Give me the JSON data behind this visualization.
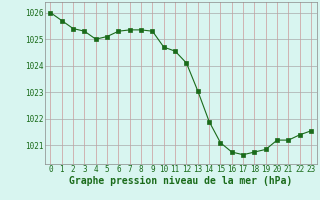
{
  "x": [
    0,
    1,
    2,
    3,
    4,
    5,
    6,
    7,
    8,
    9,
    10,
    11,
    12,
    13,
    14,
    15,
    16,
    17,
    18,
    19,
    20,
    21,
    22,
    23
  ],
  "y": [
    1026.0,
    1025.7,
    1025.4,
    1025.3,
    1025.0,
    1025.1,
    1025.3,
    1025.35,
    1025.35,
    1025.3,
    1024.7,
    1024.55,
    1024.1,
    1023.05,
    1021.9,
    1021.1,
    1020.75,
    1020.65,
    1020.75,
    1020.85,
    1021.2,
    1021.2,
    1021.4,
    1021.55
  ],
  "line_color": "#1a6b1a",
  "marker": "s",
  "marker_size": 2.2,
  "bg_color": "#d8f5f0",
  "grid_color_v": "#cc9999",
  "grid_color_h": "#aaaaaa",
  "xlabel": "Graphe pression niveau de la mer (hPa)",
  "xlabel_color": "#1a6b1a",
  "xlabel_fontsize": 7,
  "ylabel_ticks": [
    1021,
    1022,
    1023,
    1024,
    1025,
    1026
  ],
  "xtick_labels": [
    "0",
    "1",
    "2",
    "3",
    "4",
    "5",
    "6",
    "7",
    "8",
    "9",
    "10",
    "11",
    "12",
    "13",
    "14",
    "15",
    "16",
    "17",
    "18",
    "19",
    "20",
    "21",
    "22",
    "23"
  ],
  "ylim": [
    1020.3,
    1026.4
  ],
  "xlim": [
    -0.5,
    23.5
  ],
  "tick_color": "#1a6b1a",
  "tick_fontsize": 5.5
}
